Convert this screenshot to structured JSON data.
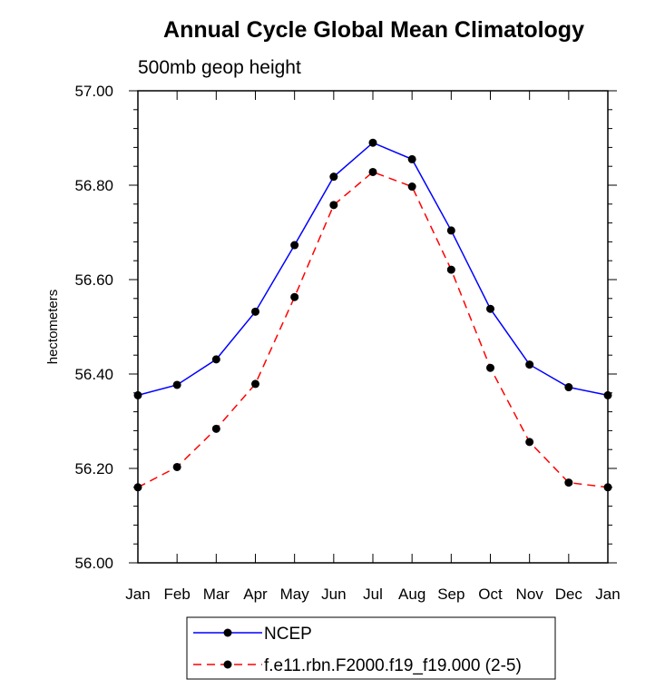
{
  "chart_data": {
    "type": "line",
    "title": "Annual Cycle Global Mean Climatology",
    "subtitle": "500mb geop height",
    "xlabel": "",
    "ylabel": "hectometers",
    "categories": [
      "Jan",
      "Feb",
      "Mar",
      "Apr",
      "May",
      "Jun",
      "Jul",
      "Aug",
      "Sep",
      "Oct",
      "Nov",
      "Dec",
      "Jan"
    ],
    "ylim": [
      56.0,
      57.0
    ],
    "yticks": [
      "56.00",
      "56.20",
      "56.40",
      "56.60",
      "56.80",
      "57.00"
    ],
    "grid": false,
    "legend_position": "bottom-center",
    "series": [
      {
        "name": "NCEP",
        "color": "#0000ff",
        "dash": "solid",
        "marker": "filled-circle",
        "values": [
          56.355,
          56.377,
          56.431,
          56.532,
          56.673,
          56.818,
          56.89,
          56.855,
          56.704,
          56.538,
          56.42,
          56.372,
          56.355
        ]
      },
      {
        "name": "f.e11.rbn.F2000.f19_f19.000 (2-5)",
        "color": "#ff0000",
        "dash": "dashed",
        "marker": "filled-circle",
        "values": [
          56.16,
          56.203,
          56.284,
          56.379,
          56.563,
          56.758,
          56.828,
          56.797,
          56.621,
          56.413,
          56.256,
          56.17,
          56.16
        ]
      }
    ]
  }
}
